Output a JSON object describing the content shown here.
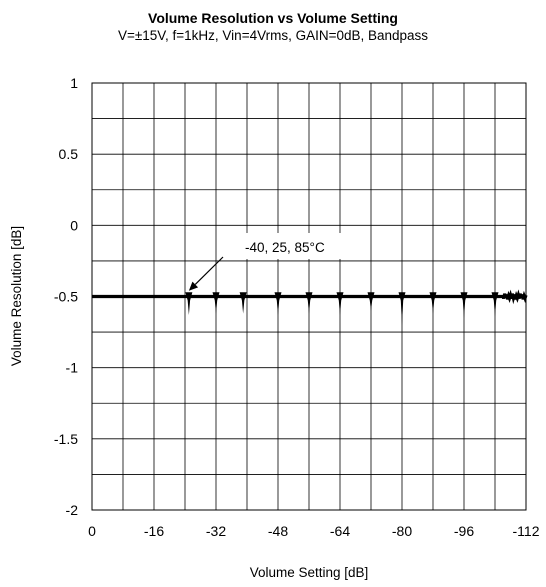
{
  "chart_data": {
    "type": "line",
    "title": "Volume Resolution vs Volume Setting",
    "subtitle": "V=±15V, f=1kHz, Vin=4Vrms, GAIN=0dB, Bandpass",
    "xlabel": "Volume Setting [dB]",
    "ylabel": "Volume Resolution [dB]",
    "xlim": [
      0,
      -112
    ],
    "ylim": [
      -2,
      1
    ],
    "x_ticks": [
      0,
      -16,
      -32,
      -48,
      -64,
      -80,
      -96,
      -112
    ],
    "x_tick_labels": [
      "0",
      "-16",
      "-32",
      "-48",
      "-64",
      "-80",
      "-96",
      "-112"
    ],
    "y_ticks": [
      1,
      0.5,
      0,
      -0.5,
      -1,
      -1.5,
      -2
    ],
    "y_tick_labels": [
      "1",
      "0.5",
      "0",
      "-0.5",
      "-1",
      "-1.5",
      "-2"
    ],
    "grid": true,
    "x_minor_step": -8,
    "y_minor_step": 0.25,
    "series": [
      {
        "baseline": -0.5,
        "spikes": [
          {
            "x": -25,
            "y": -0.63
          },
          {
            "x": -32,
            "y": -0.62
          },
          {
            "x": -39,
            "y": -0.62
          },
          {
            "x": -48,
            "y": -0.63
          },
          {
            "x": -56,
            "y": -0.62
          },
          {
            "x": -64,
            "y": -0.63
          },
          {
            "x": -72,
            "y": -0.6
          },
          {
            "x": -80,
            "y": -0.7
          },
          {
            "x": -88,
            "y": -0.62
          },
          {
            "x": -96,
            "y": -0.65
          },
          {
            "x": -104,
            "y": -0.64
          }
        ],
        "noise_region": [
          -106,
          -112
        ]
      }
    ],
    "annotation": {
      "text": "-40, 25, 85°C",
      "target": {
        "x": -25,
        "y": -0.46
      }
    }
  }
}
